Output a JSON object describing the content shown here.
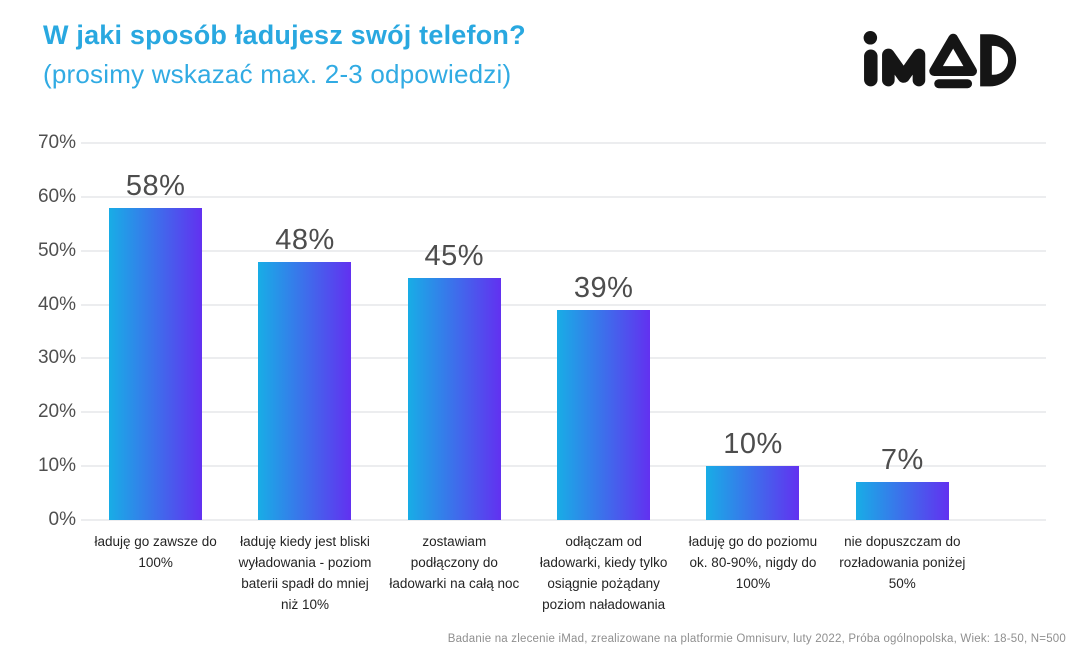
{
  "header": {
    "title": "W jaki sposób ładujesz swój telefon?",
    "subtitle": "(prosimy wskazać max. 2-3 odpowiedzi)",
    "title_color": "#29a8e0"
  },
  "logo": {
    "text": "iMAD",
    "color": "#151515"
  },
  "chart_data": {
    "type": "bar",
    "title": "W jaki sposób ładujesz swój telefon? (prosimy wskazać max. 2-3 odpowiedzi)",
    "categories": [
      "ładuję go zawsze do 100%",
      "ładuję kiedy jest bliski wyładowania - poziom baterii spadł do mniej niż 10%",
      "zostawiam podłączony do ładowarki na całą noc",
      "odłączam od ładowarki, kiedy tylko osiągnie pożądany poziom naładowania",
      "ładuję go do poziomu ok. 80-90%, nigdy do 100%",
      "nie dopuszczam do rozładowania poniżej 50%"
    ],
    "values": [
      58,
      48,
      45,
      39,
      10,
      7
    ],
    "value_labels": [
      "58%",
      "48%",
      "45%",
      "39%",
      "10%",
      "7%"
    ],
    "yticks": [
      "0%",
      "10%",
      "20%",
      "30%",
      "40%",
      "50%",
      "60%",
      "70%"
    ],
    "ylim": [
      0,
      70
    ],
    "xlabel": "",
    "ylabel": "",
    "grid": true,
    "legend": false,
    "bar_gradient_left": "#18ade6",
    "bar_gradient_right": "#6231f0"
  },
  "footer": {
    "source": "Badanie na zlecenie iMad, zrealizowane na platformie Omnisurv, luty 2022, Próba ogólnopolska, Wiek: 18-50, N=500"
  }
}
